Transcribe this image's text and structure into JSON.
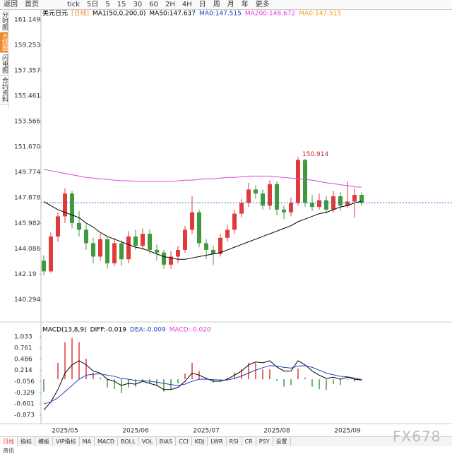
{
  "toolbar": {
    "items": [
      "返回",
      "首页",
      "",
      "",
      "",
      "tick",
      "5日",
      "5",
      "15",
      "30",
      "60",
      "2H",
      "4H",
      "日",
      "周",
      "月",
      "年",
      "更多",
      "",
      "",
      ""
    ]
  },
  "sidebar": {
    "items": [
      "分时图",
      "K线图",
      "闪电图",
      "合约资料"
    ]
  },
  "chart_data": [
    {
      "type": "candlestick",
      "title": "美元日元",
      "period": "[日线]",
      "indicator": "MA1(50,0,200,0)",
      "legend": [
        {
          "name": "MA50:147.637",
          "color": "#000000"
        },
        {
          "name": "MA0:147.515",
          "color": "#2040c0"
        },
        {
          "name": "MA200:148.672",
          "color": "#e040e0"
        },
        {
          "name": "MA0:147.515",
          "color": "#f0a020"
        }
      ],
      "up_color": "#e03a3a",
      "down_color": "#3f9a3f",
      "categories": [
        null,
        null,
        null,
        "2025/05",
        null,
        null,
        null,
        null,
        null,
        null,
        null,
        null,
        null,
        "2025/06",
        null,
        null,
        null,
        null,
        null,
        null,
        null,
        null,
        null,
        "2025/07",
        null,
        null,
        null,
        null,
        null,
        null,
        null,
        null,
        null,
        "2025/08",
        null,
        null,
        null,
        null,
        null,
        null,
        null,
        null,
        null,
        "2025/09",
        null,
        null
      ],
      "candles": [
        [
          143.2,
          143.6,
          142.1,
          142.4
        ],
        [
          142.4,
          145.3,
          142.3,
          145.0
        ],
        [
          145.0,
          146.8,
          144.6,
          146.5
        ],
        [
          146.5,
          148.6,
          146.0,
          148.2
        ],
        [
          148.2,
          148.4,
          145.6,
          146.0
        ],
        [
          146.0,
          146.9,
          145.0,
          145.5
        ],
        [
          145.5,
          145.9,
          144.0,
          144.5
        ],
        [
          144.5,
          144.9,
          143.0,
          143.5
        ],
        [
          143.5,
          145.2,
          143.2,
          144.8
        ],
        [
          144.8,
          145.0,
          142.6,
          143.0
        ],
        [
          143.0,
          144.9,
          142.8,
          144.5
        ],
        [
          144.5,
          144.7,
          142.8,
          143.3
        ],
        [
          143.3,
          145.4,
          143.0,
          145.0
        ],
        [
          145.0,
          145.5,
          144.0,
          144.3
        ],
        [
          144.3,
          145.6,
          144.0,
          145.2
        ],
        [
          145.2,
          145.5,
          143.7,
          144.0
        ],
        [
          144.0,
          144.4,
          143.2,
          143.8
        ],
        [
          143.8,
          144.0,
          142.6,
          142.9
        ],
        [
          142.9,
          143.9,
          142.6,
          143.5
        ],
        [
          143.5,
          144.3,
          143.0,
          144.0
        ],
        [
          144.0,
          145.8,
          143.8,
          145.5
        ],
        [
          145.5,
          148.0,
          145.2,
          146.8
        ],
        [
          146.8,
          147.0,
          144.2,
          144.5
        ],
        [
          144.5,
          144.8,
          143.3,
          144.0
        ],
        [
          144.0,
          144.3,
          142.9,
          143.7
        ],
        [
          143.7,
          145.2,
          143.5,
          144.9
        ],
        [
          144.9,
          145.9,
          144.6,
          145.5
        ],
        [
          145.5,
          147.0,
          145.2,
          146.7
        ],
        [
          146.7,
          147.8,
          146.4,
          147.5
        ],
        [
          147.5,
          149.0,
          147.2,
          148.5
        ],
        [
          148.5,
          148.8,
          147.8,
          148.2
        ],
        [
          148.2,
          148.5,
          147.0,
          147.3
        ],
        [
          147.3,
          149.2,
          147.0,
          148.9
        ],
        [
          148.9,
          149.1,
          146.6,
          147.0
        ],
        [
          147.0,
          147.3,
          146.3,
          146.8
        ],
        [
          146.8,
          147.9,
          146.5,
          147.5
        ],
        [
          147.5,
          150.914,
          147.3,
          150.7
        ],
        [
          150.7,
          150.8,
          147.2,
          147.5
        ],
        [
          147.5,
          148.1,
          146.9,
          147.2
        ],
        [
          147.2,
          148.2,
          147.0,
          147.7
        ],
        [
          147.7,
          148.0,
          146.7,
          147.0
        ],
        [
          147.0,
          148.4,
          146.8,
          148.0
        ],
        [
          148.0,
          148.3,
          146.9,
          147.3
        ],
        [
          147.3,
          149.1,
          147.1,
          147.6
        ],
        [
          147.6,
          148.6,
          146.4,
          148.1
        ],
        [
          148.1,
          148.3,
          147.3,
          147.5
        ]
      ],
      "series": [
        {
          "color": "#000000",
          "values": [
            147.6,
            147.3,
            147.0,
            146.8,
            146.6,
            146.4,
            146.0,
            145.7,
            145.3,
            145.0,
            144.8,
            144.6,
            144.4,
            144.2,
            144.1,
            143.9,
            143.7,
            143.5,
            143.4,
            143.3,
            143.3,
            143.4,
            143.5,
            143.6,
            143.7,
            143.8,
            144.0,
            144.2,
            144.4,
            144.6,
            144.8,
            145.0,
            145.2,
            145.4,
            145.6,
            145.8,
            146.1,
            146.3,
            146.5,
            146.7,
            146.8,
            147.0,
            147.2,
            147.3,
            147.5,
            147.637
          ]
        },
        {
          "color": "#e040e0",
          "values": [
            150.0,
            149.9,
            149.8,
            149.7,
            149.6,
            149.5,
            149.4,
            149.35,
            149.3,
            149.25,
            149.2,
            149.15,
            149.15,
            149.1,
            149.1,
            149.1,
            149.1,
            149.1,
            149.1,
            149.15,
            149.2,
            149.2,
            149.25,
            149.3,
            149.3,
            149.35,
            149.4,
            149.4,
            149.45,
            149.5,
            149.5,
            149.5,
            149.5,
            149.45,
            149.4,
            149.35,
            149.3,
            149.25,
            149.2,
            149.1,
            149.0,
            148.95,
            148.85,
            148.8,
            148.7,
            148.672
          ]
        }
      ],
      "last_price": 147.515,
      "last_price_color": "#3070d0",
      "annotation": 150.914,
      "ylim": [
        138.68,
        162.1
      ],
      "yticks": [
        161.149,
        159.253,
        157.357,
        155.461,
        153.566,
        {
          "value": 151.67,
          "label": "151.670"
        },
        149.774,
        147.878,
        145.982,
        144.086,
        142.19,
        140.294
      ]
    },
    {
      "type": "macd",
      "legend": [
        {
          "name": "MACD(13,8,9)",
          "color": "#000000"
        },
        {
          "name": "DIFF:-0.019",
          "color": "#000000"
        },
        {
          "name": "DEA:-0.009",
          "color": "#2040c0"
        },
        {
          "name": "MACD:-0.020",
          "color": "#e040e0"
        }
      ],
      "up_color": "#e03a3a",
      "down_color": "#3f9a3f",
      "histogram": [
        -0.3,
        0,
        0.4,
        0.9,
        1.0,
        0.9,
        0.5,
        0.16,
        0.04,
        -0.2,
        -0.24,
        -0.34,
        -0.2,
        -0.18,
        -0.04,
        -0.1,
        -0.16,
        -0.3,
        -0.24,
        -0.1,
        0.14,
        0.4,
        0.2,
        0.04,
        -0.08,
        -0.06,
        0.04,
        0.16,
        0.24,
        0.4,
        0.4,
        0.24,
        0.24,
        -0.04,
        -0.18,
        -0.14,
        0.26,
        0.04,
        -0.18,
        -0.24,
        -0.26,
        -0.12,
        -0.14,
        -0.02,
        -0.06,
        -0.02
      ],
      "series": [
        {
          "color": "#000000",
          "values": [
            -0.75,
            -0.55,
            -0.25,
            0.15,
            0.35,
            0.45,
            0.35,
            0.2,
            0.15,
            0.0,
            -0.05,
            -0.15,
            -0.1,
            -0.12,
            -0.05,
            -0.1,
            -0.15,
            -0.25,
            -0.25,
            -0.2,
            -0.05,
            0.15,
            0.1,
            0.02,
            -0.05,
            -0.05,
            0.0,
            0.1,
            0.2,
            0.35,
            0.42,
            0.4,
            0.45,
            0.3,
            0.2,
            0.2,
            0.45,
            0.35,
            0.2,
            0.1,
            0.02,
            0.05,
            0.0,
            0.05,
            0.0,
            -0.019
          ]
        },
        {
          "color": "#2040c0",
          "values": [
            -0.6,
            -0.55,
            -0.45,
            -0.3,
            -0.15,
            0.0,
            0.1,
            0.12,
            0.13,
            0.1,
            0.07,
            0.02,
            0.0,
            -0.03,
            -0.03,
            -0.05,
            -0.07,
            -0.1,
            -0.13,
            -0.15,
            -0.12,
            -0.05,
            0.0,
            0.0,
            -0.01,
            -0.02,
            -0.02,
            0.02,
            0.08,
            0.15,
            0.22,
            0.28,
            0.33,
            0.32,
            0.29,
            0.27,
            0.32,
            0.33,
            0.29,
            0.22,
            0.15,
            0.11,
            0.07,
            0.06,
            0.03,
            -0.009
          ]
        }
      ],
      "ylim": [
        -1.045,
        1.29
      ],
      "yticks": [
        1.033,
        0.761,
        0.486,
        0.214,
        -0.056,
        -0.329,
        -0.601,
        -0.873
      ]
    }
  ],
  "tabs": {
    "period": "日线",
    "items": [
      "指标",
      "模板",
      "VIP指标",
      "MA",
      "MACD",
      "BOLL",
      "VOL",
      "BIAS",
      "CCI",
      "KDJ",
      "LWR",
      "RSI",
      "CR",
      "PSY",
      "设置"
    ]
  },
  "watermark": "FX678",
  "footer": "资讯"
}
